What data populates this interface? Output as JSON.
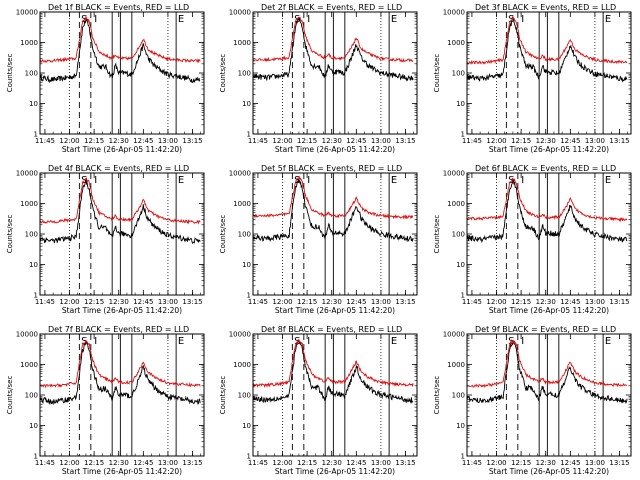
{
  "figure": {
    "colors": {
      "events": "#000000",
      "lld": "#e01010",
      "background": "#ffffff"
    },
    "x_ticks": [
      "11:45",
      "12:00",
      "12:15",
      "12:30",
      "12:45",
      "13:00",
      "13:15"
    ],
    "y_ticks": [
      "1",
      "10",
      "100",
      "1000",
      "10000"
    ],
    "x_axis_label": "Start Time (26-Apr-05 11:42:20)",
    "y_axis_label": "Counts/sec"
  },
  "chart_data": [
    {
      "type": "line",
      "title": "Det 1f BLACK = Events, RED = LLD",
      "xlabel": "Start Time (26-Apr-05 11:42:20)",
      "ylabel": "Counts/sec",
      "y_scale": "log",
      "ylim": [
        1,
        10000
      ],
      "xlim": [
        "11:42",
        "13:22"
      ],
      "x": [
        "11:42",
        "11:50",
        "11:58",
        "12:04",
        "12:06",
        "12:08",
        "12:10",
        "12:12",
        "12:14",
        "12:18",
        "12:22",
        "12:26",
        "12:28",
        "12:30",
        "12:34",
        "12:38",
        "12:42",
        "12:45",
        "12:48",
        "12:52",
        "12:56",
        "13:00",
        "13:05",
        "13:10",
        "13:15",
        "13:20"
      ],
      "series": [
        {
          "name": "Events",
          "values": [
            70,
            60,
            70,
            80,
            500,
            3000,
            5500,
            3000,
            700,
            160,
            160,
            70,
            180,
            100,
            100,
            90,
            300,
            800,
            300,
            170,
            120,
            90,
            80,
            70,
            60,
            60
          ]
        },
        {
          "name": "LLD",
          "values": [
            250,
            250,
            280,
            300,
            1200,
            5000,
            6500,
            5000,
            1500,
            500,
            380,
            300,
            400,
            300,
            300,
            300,
            650,
            1300,
            600,
            420,
            340,
            290,
            270,
            260,
            250,
            250
          ]
        }
      ],
      "markers": [
        "S",
        "I",
        "E"
      ]
    },
    {
      "type": "line",
      "title": "Det 2f BLACK = Events, RED = LLD",
      "xlabel": "Start Time (26-Apr-05 11:42:20)",
      "ylabel": "Counts/sec",
      "y_scale": "log",
      "ylim": [
        1,
        10000
      ],
      "xlim": [
        "11:42",
        "13:22"
      ],
      "x": [
        "11:42",
        "11:50",
        "11:58",
        "12:04",
        "12:06",
        "12:08",
        "12:10",
        "12:12",
        "12:14",
        "12:18",
        "12:22",
        "12:26",
        "12:28",
        "12:30",
        "12:34",
        "12:38",
        "12:42",
        "12:45",
        "12:48",
        "12:52",
        "12:56",
        "13:00",
        "13:05",
        "13:10",
        "13:15",
        "13:20"
      ],
      "series": [
        {
          "name": "Events",
          "values": [
            80,
            70,
            80,
            90,
            600,
            3500,
            6000,
            3500,
            800,
            170,
            170,
            70,
            190,
            110,
            110,
            100,
            320,
            850,
            320,
            180,
            130,
            100,
            90,
            80,
            70,
            70
          ]
        },
        {
          "name": "LLD",
          "values": [
            270,
            270,
            290,
            320,
            1300,
            5200,
            6800,
            5200,
            1600,
            520,
            400,
            310,
            420,
            310,
            310,
            310,
            680,
            1400,
            620,
            440,
            350,
            300,
            280,
            270,
            260,
            260
          ]
        }
      ],
      "markers": [
        "S",
        "I",
        "E"
      ]
    },
    {
      "type": "line",
      "title": "Det 3f BLACK = Events, RED = LLD",
      "xlabel": "Start Time (26-Apr-05 11:42:20)",
      "ylabel": "Counts/sec",
      "y_scale": "log",
      "ylim": [
        1,
        10000
      ],
      "xlim": [
        "11:42",
        "13:22"
      ],
      "x": [
        "11:42",
        "11:50",
        "11:58",
        "12:04",
        "12:06",
        "12:08",
        "12:10",
        "12:12",
        "12:14",
        "12:18",
        "12:22",
        "12:26",
        "12:28",
        "12:30",
        "12:34",
        "12:38",
        "12:42",
        "12:45",
        "12:48",
        "12:52",
        "12:56",
        "13:00",
        "13:05",
        "13:10",
        "13:15",
        "13:20"
      ],
      "series": [
        {
          "name": "Events",
          "values": [
            75,
            65,
            75,
            85,
            550,
            3200,
            5800,
            3200,
            750,
            165,
            165,
            70,
            185,
            105,
            105,
            95,
            310,
            820,
            310,
            175,
            125,
            95,
            85,
            75,
            65,
            65
          ]
        },
        {
          "name": "LLD",
          "values": [
            220,
            220,
            240,
            270,
            1100,
            4800,
            6300,
            4800,
            1400,
            480,
            360,
            280,
            380,
            280,
            280,
            280,
            620,
            1250,
            580,
            400,
            320,
            270,
            250,
            240,
            230,
            230
          ]
        }
      ],
      "markers": [
        "S",
        "I",
        "E"
      ]
    },
    {
      "type": "line",
      "title": "Det 4f BLACK = Events, RED = LLD",
      "xlabel": "Start Time (26-Apr-05 11:42:20)",
      "ylabel": "Counts/sec",
      "y_scale": "log",
      "ylim": [
        1,
        10000
      ],
      "xlim": [
        "11:42",
        "13:22"
      ],
      "x": [
        "11:42",
        "11:50",
        "11:58",
        "12:04",
        "12:06",
        "12:08",
        "12:10",
        "12:12",
        "12:14",
        "12:18",
        "12:22",
        "12:26",
        "12:28",
        "12:30",
        "12:34",
        "12:38",
        "12:42",
        "12:45",
        "12:48",
        "12:52",
        "12:56",
        "13:00",
        "13:05",
        "13:10",
        "13:15",
        "13:20"
      ],
      "series": [
        {
          "name": "Events",
          "values": [
            70,
            60,
            70,
            80,
            500,
            3000,
            5500,
            3000,
            700,
            160,
            160,
            70,
            180,
            100,
            100,
            90,
            300,
            800,
            300,
            170,
            120,
            90,
            80,
            70,
            60,
            60
          ]
        },
        {
          "name": "LLD",
          "values": [
            250,
            250,
            280,
            300,
            1200,
            5000,
            6500,
            5000,
            1500,
            500,
            380,
            300,
            400,
            300,
            300,
            300,
            650,
            1300,
            600,
            420,
            340,
            290,
            270,
            260,
            250,
            250
          ]
        }
      ],
      "markers": [
        "S",
        "I",
        "E"
      ]
    },
    {
      "type": "line",
      "title": "Det 5f BLACK = Events, RED = LLD",
      "xlabel": "Start Time (26-Apr-05 11:42:20)",
      "ylabel": "Counts/sec",
      "y_scale": "log",
      "ylim": [
        1,
        10000
      ],
      "xlim": [
        "11:42",
        "13:22"
      ],
      "x": [
        "11:42",
        "11:50",
        "11:58",
        "12:04",
        "12:06",
        "12:08",
        "12:10",
        "12:12",
        "12:14",
        "12:18",
        "12:22",
        "12:26",
        "12:28",
        "12:30",
        "12:34",
        "12:38",
        "12:42",
        "12:45",
        "12:48",
        "12:52",
        "12:56",
        "13:00",
        "13:05",
        "13:10",
        "13:15",
        "13:20"
      ],
      "series": [
        {
          "name": "Events",
          "values": [
            80,
            70,
            80,
            90,
            600,
            3500,
            6000,
            3500,
            800,
            170,
            170,
            70,
            190,
            110,
            110,
            100,
            320,
            850,
            320,
            180,
            130,
            100,
            90,
            80,
            70,
            70
          ]
        },
        {
          "name": "LLD",
          "values": [
            400,
            400,
            420,
            450,
            1500,
            5500,
            7000,
            5500,
            1800,
            620,
            480,
            400,
            500,
            400,
            400,
            400,
            780,
            1500,
            720,
            520,
            440,
            400,
            380,
            370,
            360,
            360
          ]
        }
      ],
      "markers": [
        "S",
        "I",
        "E"
      ]
    },
    {
      "type": "line",
      "title": "Det 6f BLACK = Events, RED = LLD",
      "xlabel": "Start Time (26-Apr-05 11:42:20)",
      "ylabel": "Counts/sec",
      "y_scale": "log",
      "ylim": [
        1,
        10000
      ],
      "xlim": [
        "11:42",
        "13:22"
      ],
      "x": [
        "11:42",
        "11:50",
        "11:58",
        "12:04",
        "12:06",
        "12:08",
        "12:10",
        "12:12",
        "12:14",
        "12:18",
        "12:22",
        "12:26",
        "12:28",
        "12:30",
        "12:34",
        "12:38",
        "12:42",
        "12:45",
        "12:48",
        "12:52",
        "12:56",
        "13:00",
        "13:05",
        "13:10",
        "13:15",
        "13:20"
      ],
      "series": [
        {
          "name": "Events",
          "values": [
            75,
            65,
            75,
            85,
            550,
            3200,
            5800,
            3200,
            750,
            165,
            165,
            70,
            185,
            105,
            105,
            95,
            310,
            820,
            310,
            175,
            125,
            95,
            85,
            75,
            65,
            65
          ]
        },
        {
          "name": "LLD",
          "values": [
            320,
            320,
            340,
            370,
            1300,
            5000,
            6500,
            5000,
            1600,
            560,
            430,
            350,
            450,
            350,
            350,
            350,
            700,
            1400,
            660,
            470,
            390,
            340,
            320,
            310,
            300,
            300
          ]
        }
      ],
      "markers": [
        "S",
        "I",
        "E"
      ]
    },
    {
      "type": "line",
      "title": "Det 7f BLACK = Events, RED = LLD",
      "xlabel": "Start Time (26-Apr-05 11:42:20)",
      "ylabel": "Counts/sec",
      "y_scale": "log",
      "ylim": [
        1,
        10000
      ],
      "xlim": [
        "11:42",
        "13:22"
      ],
      "x": [
        "11:42",
        "11:50",
        "11:58",
        "12:04",
        "12:06",
        "12:08",
        "12:10",
        "12:12",
        "12:14",
        "12:18",
        "12:22",
        "12:26",
        "12:28",
        "12:30",
        "12:34",
        "12:38",
        "12:42",
        "12:45",
        "12:48",
        "12:52",
        "12:56",
        "13:00",
        "13:05",
        "13:10",
        "13:15",
        "13:20"
      ],
      "series": [
        {
          "name": "Events",
          "values": [
            70,
            60,
            70,
            80,
            500,
            3000,
            5500,
            3000,
            700,
            160,
            160,
            70,
            180,
            100,
            100,
            90,
            300,
            800,
            300,
            170,
            120,
            90,
            80,
            70,
            60,
            60
          ]
        },
        {
          "name": "LLD",
          "values": [
            200,
            200,
            220,
            250,
            1100,
            4600,
            6000,
            4600,
            1400,
            460,
            340,
            260,
            360,
            260,
            260,
            260,
            600,
            1200,
            560,
            380,
            300,
            250,
            230,
            220,
            210,
            210
          ]
        }
      ],
      "markers": [
        "S",
        "I",
        "E"
      ]
    },
    {
      "type": "line",
      "title": "Det 8f BLACK = Events, RED = LLD",
      "xlabel": "Start Time (26-Apr-05 11:42:20)",
      "ylabel": "Counts/sec",
      "y_scale": "log",
      "ylim": [
        1,
        10000
      ],
      "xlim": [
        "11:42",
        "13:22"
      ],
      "x": [
        "11:42",
        "11:50",
        "11:58",
        "12:04",
        "12:06",
        "12:08",
        "12:10",
        "12:12",
        "12:14",
        "12:18",
        "12:22",
        "12:26",
        "12:28",
        "12:30",
        "12:34",
        "12:38",
        "12:42",
        "12:45",
        "12:48",
        "12:52",
        "12:56",
        "13:00",
        "13:05",
        "13:10",
        "13:15",
        "13:20"
      ],
      "series": [
        {
          "name": "Events",
          "values": [
            80,
            70,
            80,
            90,
            600,
            3500,
            6000,
            3500,
            800,
            170,
            170,
            70,
            190,
            110,
            110,
            100,
            320,
            850,
            320,
            180,
            130,
            100,
            90,
            80,
            70,
            70
          ]
        },
        {
          "name": "LLD",
          "values": [
            210,
            210,
            230,
            260,
            1150,
            4800,
            6200,
            4800,
            1450,
            470,
            350,
            270,
            370,
            270,
            270,
            270,
            620,
            1250,
            580,
            390,
            310,
            260,
            240,
            230,
            220,
            220
          ]
        }
      ],
      "markers": [
        "S",
        "I",
        "E"
      ]
    },
    {
      "type": "line",
      "title": "Det 9f BLACK = Events, RED = LLD",
      "xlabel": "Start Time (26-Apr-05 11:42:20)",
      "ylabel": "Counts/sec",
      "y_scale": "log",
      "ylim": [
        1,
        10000
      ],
      "xlim": [
        "11:42",
        "13:22"
      ],
      "x": [
        "11:42",
        "11:50",
        "11:58",
        "12:04",
        "12:06",
        "12:08",
        "12:10",
        "12:12",
        "12:14",
        "12:18",
        "12:22",
        "12:26",
        "12:28",
        "12:30",
        "12:34",
        "12:38",
        "12:42",
        "12:45",
        "12:48",
        "12:52",
        "12:56",
        "13:00",
        "13:05",
        "13:10",
        "13:15",
        "13:20"
      ],
      "series": [
        {
          "name": "Events",
          "values": [
            75,
            65,
            75,
            85,
            550,
            3200,
            5800,
            3200,
            750,
            165,
            165,
            70,
            185,
            105,
            105,
            95,
            310,
            820,
            310,
            175,
            125,
            95,
            85,
            75,
            65,
            65
          ]
        },
        {
          "name": "LLD",
          "values": [
            200,
            200,
            220,
            250,
            1100,
            4600,
            6000,
            4600,
            1400,
            460,
            340,
            260,
            360,
            260,
            260,
            260,
            600,
            1200,
            560,
            380,
            300,
            250,
            230,
            220,
            210,
            210
          ]
        }
      ],
      "markers": [
        "S",
        "I",
        "E"
      ]
    }
  ]
}
